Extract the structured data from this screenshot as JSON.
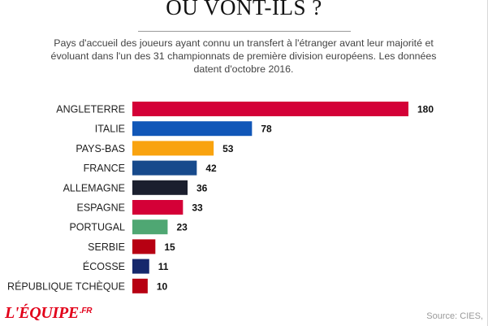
{
  "header": {
    "title": "OÙ VONT-ILS ?",
    "subtitle": "Pays d'accueil des joueurs ayant connu un transfert à l'étranger avant leur majorité et évoluant dans l'un des 31 championnats de première division européens. Les données datent d'octobre 2016."
  },
  "chart_data": {
    "type": "bar",
    "orientation": "horizontal",
    "title": "OÙ VONT-ILS ?",
    "categories": [
      "ANGLETERRE",
      "ITALIE",
      "PAYS-BAS",
      "FRANCE",
      "ALLEMAGNE",
      "ESPAGNE",
      "PORTUGAL",
      "SERBIE",
      "ÉCOSSE",
      "RÉPUBLIQUE TCHÈQUE"
    ],
    "values": [
      180,
      78,
      53,
      42,
      36,
      33,
      23,
      15,
      11,
      10
    ],
    "value_labels": [
      "180",
      "78",
      "53",
      "42",
      "36",
      "33",
      "23",
      "15",
      "11",
      "10"
    ],
    "colors": [
      "#d40037",
      "#1157b8",
      "#f9a30f",
      "#174a8c",
      "#1b1f2e",
      "#d40037",
      "#4fa773",
      "#b70012",
      "#16286c",
      "#b70012"
    ],
    "xlim": [
      0,
      180
    ],
    "grid": false,
    "xlabel": "",
    "ylabel": ""
  },
  "footer": {
    "logo": "L'ÉQUIPE",
    "logo_suffix": ".FR",
    "source": "Source: CIES,"
  }
}
